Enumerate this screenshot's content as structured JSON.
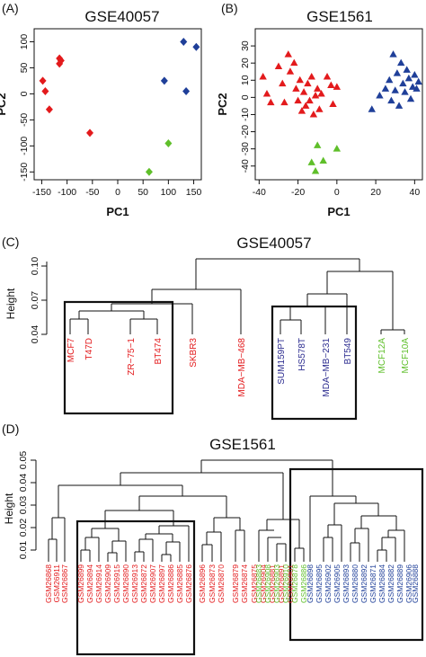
{
  "colors": {
    "red": "#e31a1c",
    "blue": "#1f3f99",
    "green": "#5fbf2a",
    "purple": "#2b2b8f",
    "black": "#111111"
  },
  "panels": {
    "a": "(A)",
    "b": "(B)",
    "c": "(C)",
    "d": "(D)"
  },
  "chart_data": [
    {
      "type": "scatter",
      "title": "GSE40057",
      "xlabel": "PC1",
      "ylabel": "PC2",
      "xlim": [
        -165,
        165
      ],
      "ylim": [
        -165,
        125
      ],
      "xticks": [
        -150,
        -100,
        -50,
        0,
        50,
        100,
        150
      ],
      "yticks": [
        -150,
        -100,
        -50,
        0,
        50,
        100
      ],
      "marker": "diamond",
      "series": [
        {
          "color": "red",
          "points": [
            [
              -148,
              25
            ],
            [
              -143,
              5
            ],
            [
              -135,
              -30
            ],
            [
              -115,
              68
            ],
            [
              -115,
              58
            ],
            [
              -112,
              64
            ],
            [
              -55,
              -75
            ]
          ]
        },
        {
          "color": "blue",
          "points": [
            [
              92,
              25
            ],
            [
              130,
              100
            ],
            [
              135,
              5
            ],
            [
              155,
              90
            ]
          ]
        },
        {
          "color": "green",
          "points": [
            [
              62,
              -150
            ],
            [
              100,
              -95
            ]
          ]
        }
      ]
    },
    {
      "type": "scatter",
      "title": "GSE1561",
      "xlabel": "PC1",
      "ylabel": "PC2",
      "xlim": [
        -42,
        44
      ],
      "ylim": [
        -48,
        40
      ],
      "xticks": [
        -40,
        -20,
        0,
        20,
        40
      ],
      "yticks": [
        -40,
        -30,
        -20,
        -10,
        0,
        10,
        20,
        30
      ],
      "marker": "triangle",
      "series": [
        {
          "color": "red",
          "points": [
            [
              -38,
              12
            ],
            [
              -36,
              2
            ],
            [
              -34,
              -3
            ],
            [
              -30,
              18
            ],
            [
              -28,
              8
            ],
            [
              -27,
              -3
            ],
            [
              -25,
              25
            ],
            [
              -24,
              15
            ],
            [
              -22,
              20
            ],
            [
              -21,
              5
            ],
            [
              -20,
              -2
            ],
            [
              -19,
              10
            ],
            [
              -18,
              -8
            ],
            [
              -17,
              3
            ],
            [
              -16,
              -5
            ],
            [
              -15,
              8
            ],
            [
              -14,
              -2
            ],
            [
              -13,
              12
            ],
            [
              -12,
              -10
            ],
            [
              -11,
              1
            ],
            [
              -10,
              5
            ],
            [
              -9,
              -7
            ],
            [
              -8,
              2
            ],
            [
              -5,
              12
            ],
            [
              -3,
              7
            ],
            [
              -2,
              -4
            ],
            [
              0,
              6
            ]
          ]
        },
        {
          "color": "blue",
          "points": [
            [
              18,
              -7
            ],
            [
              22,
              1
            ],
            [
              25,
              5
            ],
            [
              27,
              10
            ],
            [
              28,
              -2
            ],
            [
              29,
              25
            ],
            [
              30,
              4
            ],
            [
              31,
              14
            ],
            [
              32,
              -5
            ],
            [
              33,
              20
            ],
            [
              34,
              8
            ],
            [
              35,
              3
            ],
            [
              36,
              16
            ],
            [
              37,
              11
            ],
            [
              38,
              -1
            ],
            [
              39,
              6
            ],
            [
              40,
              13
            ],
            [
              41,
              5
            ],
            [
              42,
              9
            ]
          ]
        },
        {
          "color": "green",
          "points": [
            [
              -13,
              -38
            ],
            [
              -11,
              -43
            ],
            [
              -10,
              -28
            ],
            [
              -7,
              -37
            ],
            [
              0,
              -30
            ]
          ]
        }
      ]
    },
    {
      "type": "dendrogram",
      "title": "GSE40057",
      "ylabel": "Height",
      "yticks": [
        "0.04",
        "0.07",
        "0.10"
      ],
      "leaves": [
        {
          "label": "MCF7",
          "color": "red"
        },
        {
          "label": "T47D",
          "color": "red"
        },
        {
          "label": "ZR−75−1",
          "color": "red"
        },
        {
          "label": "BT474",
          "color": "red"
        },
        {
          "label": "SKBR3",
          "color": "red"
        },
        {
          "label": "MDA−MB−468",
          "color": "red"
        },
        {
          "label": "SUM159PT",
          "color": "purple"
        },
        {
          "label": "HS578T",
          "color": "purple"
        },
        {
          "label": "MDA−MB−231",
          "color": "purple"
        },
        {
          "label": "BT549",
          "color": "purple"
        },
        {
          "label": "MCF12A",
          "color": "green"
        },
        {
          "label": "MCF10A",
          "color": "green"
        }
      ]
    },
    {
      "type": "dendrogram",
      "title": "GSE1561",
      "ylabel": "Height",
      "yticks": [
        "0.01",
        "0.02",
        "0.03",
        "0.04",
        "0.05"
      ],
      "leaves": [
        {
          "label": "GSM26868",
          "color": "red"
        },
        {
          "label": "GSM26911",
          "color": "red"
        },
        {
          "label": "GSM26867",
          "color": "red"
        },
        {
          "label": "GSM26899",
          "color": "red"
        },
        {
          "label": "GSM26894",
          "color": "red"
        },
        {
          "label": "GSM26914",
          "color": "red"
        },
        {
          "label": "GSM26909",
          "color": "red"
        },
        {
          "label": "GSM26915",
          "color": "red"
        },
        {
          "label": "GSM26890",
          "color": "red"
        },
        {
          "label": "GSM26913",
          "color": "red"
        },
        {
          "label": "GSM26872",
          "color": "red"
        },
        {
          "label": "GSM26907",
          "color": "red"
        },
        {
          "label": "GSM26897",
          "color": "red"
        },
        {
          "label": "GSM26886",
          "color": "red"
        },
        {
          "label": "GSM26885",
          "color": "red"
        },
        {
          "label": "GSM26876",
          "color": "red"
        },
        {
          "label": "GSM26896",
          "color": "red"
        },
        {
          "label": "GSM26873",
          "color": "red"
        },
        {
          "label": "GSM26870",
          "color": "red"
        },
        {
          "label": "GSM26879",
          "color": "red"
        },
        {
          "label": "GSM26874",
          "color": "red"
        },
        {
          "label": "GSM26875",
          "color": "red"
        },
        {
          "label": "GSM26904",
          "color": "red"
        },
        {
          "label": "GSM26881",
          "color": "red"
        },
        {
          "label": "GSM26891",
          "color": "red"
        },
        {
          "label": "GSM26901",
          "color": "red"
        },
        {
          "label": "GSM26883",
          "color": "green"
        },
        {
          "label": "GSM26908",
          "color": "green"
        },
        {
          "label": "GSM26903",
          "color": "green"
        },
        {
          "label": "GSM26910",
          "color": "green"
        },
        {
          "label": "GSM26878",
          "color": "green"
        },
        {
          "label": "GSM26886",
          "color": "green"
        },
        {
          "label": "GSM26898",
          "color": "blue"
        },
        {
          "label": "GSM26895",
          "color": "blue"
        },
        {
          "label": "GSM26902",
          "color": "blue"
        },
        {
          "label": "GSM26905",
          "color": "blue"
        },
        {
          "label": "GSM26893",
          "color": "blue"
        },
        {
          "label": "GSM26880",
          "color": "blue"
        },
        {
          "label": "GSM26892",
          "color": "blue"
        },
        {
          "label": "GSM26871",
          "color": "blue"
        },
        {
          "label": "GSM26884",
          "color": "blue"
        },
        {
          "label": "GSM26882",
          "color": "blue"
        },
        {
          "label": "GSM26889",
          "color": "blue"
        },
        {
          "label": "GSM26906",
          "color": "blue"
        },
        {
          "label": "GSM26888",
          "color": "blue"
        }
      ]
    }
  ]
}
